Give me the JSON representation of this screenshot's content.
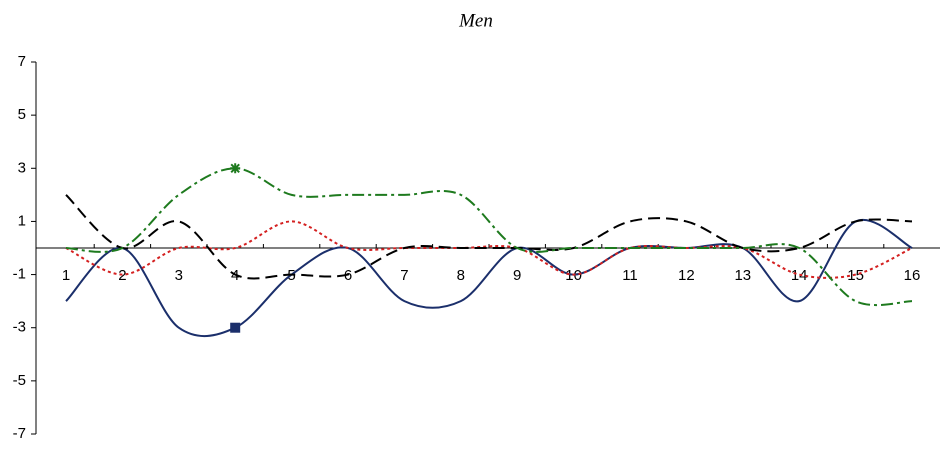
{
  "chart_data": {
    "type": "line",
    "title": "Men",
    "categories": [
      "1",
      "2",
      "3",
      "4",
      "5",
      "6",
      "7",
      "8",
      "9",
      "10",
      "11",
      "12",
      "13",
      "14",
      "15",
      "16"
    ],
    "ylim": [
      -7,
      7
    ],
    "yticks": [
      -7,
      -5,
      -3,
      -1,
      1,
      3,
      5,
      7
    ],
    "smooth": true,
    "series": [
      {
        "color": "#1b2f6b",
        "dash": "solid",
        "marker": "square",
        "marker_index": 3,
        "values": [
          -2,
          0,
          -3,
          -3,
          -1,
          0,
          -2,
          -2,
          0,
          -1,
          0,
          0,
          0,
          -2,
          1,
          0
        ]
      },
      {
        "color": "#d42020",
        "dash": "dotted",
        "values": [
          0,
          -1,
          0,
          0,
          1,
          0,
          0,
          0,
          0,
          -1,
          0,
          0,
          0,
          -1,
          -1,
          0
        ]
      },
      {
        "color": "#000000",
        "dash": "dashed",
        "values": [
          2,
          0,
          1,
          -1,
          -1,
          -1,
          0,
          0,
          0,
          0,
          1,
          1,
          0,
          0,
          1,
          1
        ]
      },
      {
        "color": "#1e7a1e",
        "dash": "dashdot",
        "marker": "star",
        "marker_index": 3,
        "values": [
          0,
          0,
          2,
          3,
          2,
          2,
          2,
          2,
          0,
          0,
          0,
          0,
          0,
          0,
          -2,
          -2
        ]
      }
    ]
  }
}
